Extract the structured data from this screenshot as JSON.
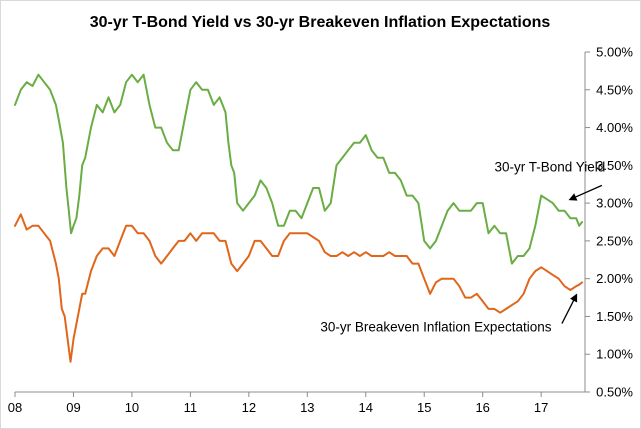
{
  "chart_data": {
    "type": "line",
    "title": "30-yr T-Bond Yield vs 30-yr Breakeven Inflation Expectations",
    "xlabel": "",
    "ylabel": "",
    "xlim": [
      2008.0,
      2017.75
    ],
    "ylim": [
      0.5,
      5.0
    ],
    "x_ticks": [
      "08",
      "09",
      "10",
      "11",
      "12",
      "13",
      "14",
      "15",
      "16",
      "17"
    ],
    "y_ticks": [
      "0.50%",
      "1.00%",
      "1.50%",
      "2.00%",
      "2.50%",
      "3.00%",
      "3.50%",
      "4.00%",
      "4.50%",
      "5.00%"
    ],
    "grid": false,
    "legend": "none",
    "series": [
      {
        "name": "30-yr T-Bond Yield",
        "color": "#6aad44",
        "x": [
          2008.0,
          2008.1,
          2008.2,
          2008.3,
          2008.4,
          2008.5,
          2008.6,
          2008.7,
          2008.75,
          2008.82,
          2008.88,
          2008.92,
          2008.96,
          2009.0,
          2009.05,
          2009.1,
          2009.15,
          2009.2,
          2009.3,
          2009.4,
          2009.5,
          2009.6,
          2009.7,
          2009.8,
          2009.9,
          2010.0,
          2010.1,
          2010.2,
          2010.3,
          2010.4,
          2010.5,
          2010.6,
          2010.7,
          2010.8,
          2010.9,
          2011.0,
          2011.1,
          2011.2,
          2011.3,
          2011.4,
          2011.5,
          2011.6,
          2011.65,
          2011.7,
          2011.75,
          2011.8,
          2011.9,
          2012.0,
          2012.1,
          2012.2,
          2012.3,
          2012.4,
          2012.5,
          2012.6,
          2012.7,
          2012.8,
          2012.9,
          2013.0,
          2013.1,
          2013.2,
          2013.3,
          2013.4,
          2013.5,
          2013.6,
          2013.7,
          2013.8,
          2013.9,
          2014.0,
          2014.1,
          2014.2,
          2014.3,
          2014.4,
          2014.5,
          2014.6,
          2014.7,
          2014.8,
          2014.9,
          2015.0,
          2015.1,
          2015.2,
          2015.3,
          2015.4,
          2015.5,
          2015.6,
          2015.7,
          2015.8,
          2015.9,
          2016.0,
          2016.1,
          2016.2,
          2016.3,
          2016.4,
          2016.5,
          2016.6,
          2016.7,
          2016.8,
          2016.9,
          2017.0,
          2017.1,
          2017.2,
          2017.3,
          2017.4,
          2017.5,
          2017.6,
          2017.65,
          2017.7
        ],
        "y": [
          4.3,
          4.5,
          4.6,
          4.55,
          4.7,
          4.6,
          4.5,
          4.3,
          4.1,
          3.8,
          3.2,
          2.9,
          2.6,
          2.7,
          2.8,
          3.1,
          3.5,
          3.6,
          4.0,
          4.3,
          4.2,
          4.4,
          4.2,
          4.3,
          4.6,
          4.7,
          4.6,
          4.7,
          4.3,
          4.0,
          4.0,
          3.8,
          3.7,
          3.7,
          4.1,
          4.5,
          4.6,
          4.5,
          4.5,
          4.3,
          4.4,
          4.2,
          3.8,
          3.5,
          3.4,
          3.0,
          2.9,
          3.0,
          3.1,
          3.3,
          3.2,
          3.0,
          2.7,
          2.7,
          2.9,
          2.9,
          2.8,
          3.0,
          3.2,
          3.2,
          2.9,
          3.0,
          3.5,
          3.6,
          3.7,
          3.8,
          3.8,
          3.9,
          3.7,
          3.6,
          3.6,
          3.4,
          3.4,
          3.3,
          3.1,
          3.1,
          3.0,
          2.5,
          2.4,
          2.5,
          2.7,
          2.9,
          3.0,
          2.9,
          2.9,
          2.9,
          3.0,
          3.0,
          2.6,
          2.7,
          2.6,
          2.6,
          2.2,
          2.3,
          2.3,
          2.4,
          2.7,
          3.1,
          3.05,
          3.0,
          2.9,
          2.9,
          2.8,
          2.8,
          2.7,
          2.75
        ]
      },
      {
        "name": "30-yr Breakeven Inflation Expectations",
        "color": "#e0661c",
        "x": [
          2008.0,
          2008.1,
          2008.2,
          2008.3,
          2008.4,
          2008.5,
          2008.6,
          2008.7,
          2008.75,
          2008.8,
          2008.85,
          2008.9,
          2008.95,
          2009.0,
          2009.05,
          2009.1,
          2009.15,
          2009.2,
          2009.3,
          2009.4,
          2009.5,
          2009.6,
          2009.7,
          2009.8,
          2009.9,
          2010.0,
          2010.1,
          2010.2,
          2010.3,
          2010.4,
          2010.5,
          2010.6,
          2010.7,
          2010.8,
          2010.9,
          2011.0,
          2011.1,
          2011.2,
          2011.3,
          2011.4,
          2011.5,
          2011.6,
          2011.7,
          2011.8,
          2011.9,
          2012.0,
          2012.1,
          2012.2,
          2012.3,
          2012.4,
          2012.5,
          2012.6,
          2012.7,
          2012.8,
          2012.9,
          2013.0,
          2013.1,
          2013.2,
          2013.3,
          2013.4,
          2013.5,
          2013.6,
          2013.7,
          2013.8,
          2013.9,
          2014.0,
          2014.1,
          2014.2,
          2014.3,
          2014.4,
          2014.5,
          2014.6,
          2014.7,
          2014.8,
          2014.9,
          2015.0,
          2015.1,
          2015.2,
          2015.3,
          2015.4,
          2015.5,
          2015.6,
          2015.7,
          2015.8,
          2015.9,
          2016.0,
          2016.1,
          2016.2,
          2016.3,
          2016.4,
          2016.5,
          2016.6,
          2016.7,
          2016.8,
          2016.9,
          2017.0,
          2017.1,
          2017.2,
          2017.3,
          2017.4,
          2017.5,
          2017.6,
          2017.65,
          2017.7
        ],
        "y": [
          2.7,
          2.85,
          2.65,
          2.7,
          2.7,
          2.6,
          2.5,
          2.2,
          2.0,
          1.6,
          1.5,
          1.2,
          0.9,
          1.2,
          1.4,
          1.6,
          1.8,
          1.8,
          2.1,
          2.3,
          2.4,
          2.4,
          2.3,
          2.5,
          2.7,
          2.7,
          2.6,
          2.6,
          2.5,
          2.3,
          2.2,
          2.3,
          2.4,
          2.5,
          2.5,
          2.6,
          2.5,
          2.6,
          2.6,
          2.6,
          2.5,
          2.5,
          2.2,
          2.1,
          2.2,
          2.3,
          2.5,
          2.5,
          2.4,
          2.3,
          2.3,
          2.5,
          2.6,
          2.6,
          2.6,
          2.6,
          2.55,
          2.5,
          2.35,
          2.3,
          2.3,
          2.35,
          2.3,
          2.35,
          2.3,
          2.35,
          2.3,
          2.3,
          2.3,
          2.35,
          2.3,
          2.3,
          2.3,
          2.2,
          2.2,
          2.0,
          1.8,
          1.95,
          2.0,
          2.0,
          2.0,
          1.9,
          1.75,
          1.75,
          1.8,
          1.7,
          1.6,
          1.6,
          1.55,
          1.6,
          1.65,
          1.7,
          1.8,
          2.0,
          2.1,
          2.15,
          2.1,
          2.05,
          2.0,
          1.9,
          1.85,
          1.9,
          1.92,
          1.95
        ]
      }
    ],
    "annotations": [
      {
        "text": "30-yr T-Bond Yield",
        "x": 2017.15,
        "y": 3.42,
        "arrow_to": [
          2017.5,
          3.05
        ]
      },
      {
        "text": "30-yr Breakeven Inflation Expectations",
        "x": 2015.2,
        "y": 1.3,
        "arrow_to": [
          2017.6,
          1.78
        ]
      }
    ]
  }
}
